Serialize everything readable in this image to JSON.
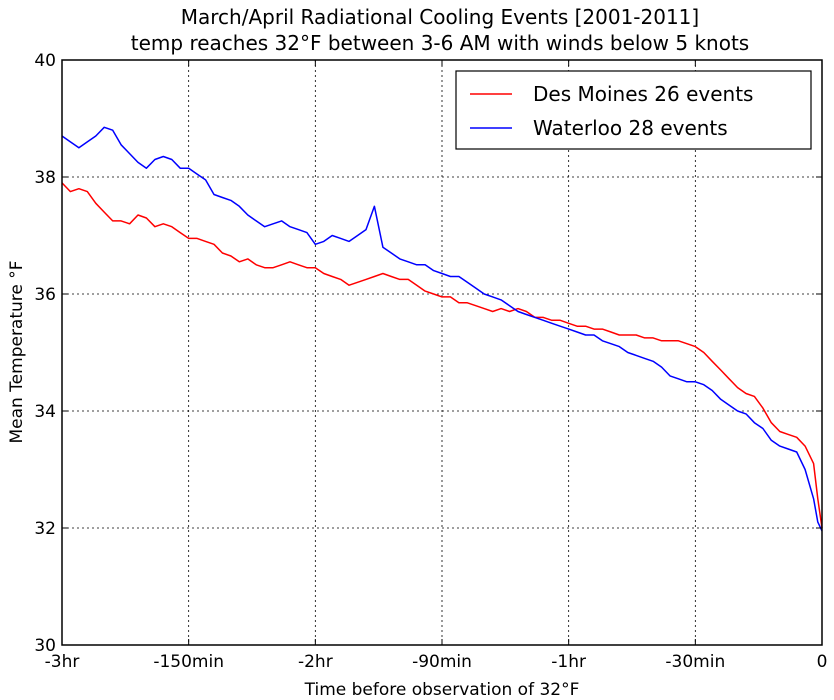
{
  "chart_data": {
    "type": "line",
    "title": "March/April Radiational Cooling Events [2001-2011]",
    "subtitle": "temp reaches 32°F between 3-6 AM with winds below 5 knots",
    "xlabel": "Time before observation of 32°F",
    "ylabel": "Mean Temperature °F",
    "xlim": [
      -180,
      0
    ],
    "ylim": [
      30,
      40
    ],
    "x_ticks": [
      {
        "value": -180,
        "label": "-3hr"
      },
      {
        "value": -150,
        "label": "-150min"
      },
      {
        "value": -120,
        "label": "-2hr"
      },
      {
        "value": -90,
        "label": "-90min"
      },
      {
        "value": -60,
        "label": "-1hr"
      },
      {
        "value": -30,
        "label": "-30min"
      },
      {
        "value": 0,
        "label": "0"
      }
    ],
    "y_ticks": [
      {
        "value": 30,
        "label": "30"
      },
      {
        "value": 32,
        "label": "32"
      },
      {
        "value": 34,
        "label": "34"
      },
      {
        "value": 36,
        "label": "36"
      },
      {
        "value": 38,
        "label": "38"
      },
      {
        "value": 40,
        "label": "40"
      }
    ],
    "grid": true,
    "legend_position": "top-right",
    "series": [
      {
        "name": "Des Moines 26 events",
        "color": "#ff0000",
        "x": [
          -180,
          -178,
          -176,
          -174,
          -172,
          -170,
          -168,
          -166,
          -164,
          -162,
          -160,
          -158,
          -156,
          -154,
          -152,
          -150,
          -148,
          -146,
          -144,
          -142,
          -140,
          -138,
          -136,
          -134,
          -132,
          -130,
          -128,
          -126,
          -124,
          -122,
          -120,
          -118,
          -116,
          -114,
          -112,
          -110,
          -108,
          -106,
          -104,
          -102,
          -100,
          -98,
          -96,
          -94,
          -92,
          -90,
          -88,
          -86,
          -84,
          -82,
          -80,
          -78,
          -76,
          -74,
          -72,
          -70,
          -68,
          -66,
          -64,
          -62,
          -60,
          -58,
          -56,
          -54,
          -52,
          -50,
          -48,
          -46,
          -44,
          -42,
          -40,
          -38,
          -36,
          -34,
          -32,
          -30,
          -28,
          -26,
          -24,
          -22,
          -20,
          -18,
          -16,
          -14,
          -12,
          -10,
          -8,
          -6,
          -4,
          -2,
          -1,
          0
        ],
        "y": [
          37.9,
          37.75,
          37.8,
          37.75,
          37.55,
          37.4,
          37.25,
          37.25,
          37.2,
          37.35,
          37.3,
          37.15,
          37.2,
          37.15,
          37.05,
          36.95,
          36.95,
          36.9,
          36.85,
          36.7,
          36.65,
          36.55,
          36.6,
          36.5,
          36.45,
          36.45,
          36.5,
          36.55,
          36.5,
          36.45,
          36.45,
          36.35,
          36.3,
          36.25,
          36.15,
          36.2,
          36.25,
          36.3,
          36.35,
          36.3,
          36.25,
          36.25,
          36.15,
          36.05,
          36.0,
          35.95,
          35.95,
          35.85,
          35.85,
          35.8,
          35.75,
          35.7,
          35.75,
          35.7,
          35.75,
          35.7,
          35.6,
          35.6,
          35.55,
          35.55,
          35.5,
          35.45,
          35.45,
          35.4,
          35.4,
          35.35,
          35.3,
          35.3,
          35.3,
          35.25,
          35.25,
          35.2,
          35.2,
          35.2,
          35.15,
          35.1,
          35.0,
          34.85,
          34.7,
          34.55,
          34.4,
          34.3,
          34.25,
          34.05,
          33.8,
          33.65,
          33.6,
          33.55,
          33.4,
          33.1,
          32.5,
          32.0
        ]
      },
      {
        "name": "Waterloo 28 events",
        "color": "#0000ff",
        "x": [
          -180,
          -178,
          -176,
          -174,
          -172,
          -170,
          -168,
          -166,
          -164,
          -162,
          -160,
          -158,
          -156,
          -154,
          -152,
          -150,
          -148,
          -146,
          -144,
          -142,
          -140,
          -138,
          -136,
          -134,
          -132,
          -130,
          -128,
          -126,
          -124,
          -122,
          -120,
          -118,
          -116,
          -114,
          -112,
          -110,
          -108,
          -106,
          -104,
          -102,
          -100,
          -98,
          -96,
          -94,
          -92,
          -90,
          -88,
          -86,
          -84,
          -82,
          -80,
          -78,
          -76,
          -74,
          -72,
          -70,
          -68,
          -66,
          -64,
          -62,
          -60,
          -58,
          -56,
          -54,
          -52,
          -50,
          -48,
          -46,
          -44,
          -42,
          -40,
          -38,
          -36,
          -34,
          -32,
          -30,
          -28,
          -26,
          -24,
          -22,
          -20,
          -18,
          -16,
          -14,
          -12,
          -10,
          -8,
          -6,
          -4,
          -2,
          -1,
          0
        ],
        "y": [
          38.7,
          38.6,
          38.5,
          38.6,
          38.7,
          38.85,
          38.8,
          38.55,
          38.4,
          38.25,
          38.15,
          38.3,
          38.35,
          38.3,
          38.15,
          38.15,
          38.05,
          37.95,
          37.7,
          37.65,
          37.6,
          37.5,
          37.35,
          37.25,
          37.15,
          37.2,
          37.25,
          37.15,
          37.1,
          37.05,
          36.85,
          36.9,
          37.0,
          36.95,
          36.9,
          37.0,
          37.1,
          37.5,
          36.8,
          36.7,
          36.6,
          36.55,
          36.5,
          36.5,
          36.4,
          36.35,
          36.3,
          36.3,
          36.2,
          36.1,
          36.0,
          35.95,
          35.9,
          35.8,
          35.7,
          35.65,
          35.6,
          35.55,
          35.5,
          35.45,
          35.4,
          35.35,
          35.3,
          35.3,
          35.2,
          35.15,
          35.1,
          35.0,
          34.95,
          34.9,
          34.85,
          34.75,
          34.6,
          34.55,
          34.5,
          34.5,
          34.45,
          34.35,
          34.2,
          34.1,
          34.0,
          33.95,
          33.8,
          33.7,
          33.5,
          33.4,
          33.35,
          33.3,
          33.0,
          32.5,
          32.1,
          31.95
        ]
      }
    ]
  }
}
